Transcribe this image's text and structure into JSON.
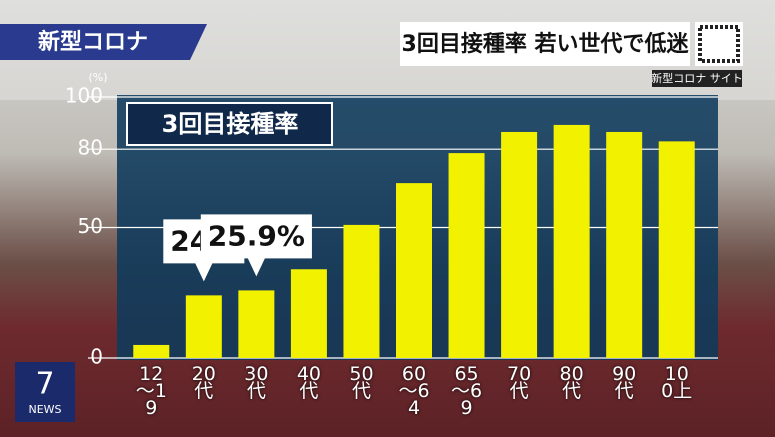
{
  "header": {
    "banner": "新型コロナ",
    "headline": "3回目接種率 若い世代で低迷",
    "site": "新型コロナ サイト"
  },
  "logo": {
    "number": "7",
    "text": "NEWS"
  },
  "chart_data": {
    "type": "bar",
    "title": "3回目接種率",
    "y_unit": "(%)",
    "categories": [
      "12〜19",
      "20代",
      "30代",
      "40代",
      "50代",
      "60〜64",
      "65〜69",
      "70代",
      "80代",
      "90代",
      "100上"
    ],
    "values": [
      5,
      24,
      25.9,
      34,
      51,
      67,
      78.5,
      86.6,
      89.3,
      86.6,
      83
    ],
    "value_labels": [
      null,
      "24%",
      "25.9%",
      null,
      null,
      null,
      null,
      null,
      null,
      null,
      null
    ],
    "color": "#f2f200",
    "ylim": [
      0,
      100
    ],
    "yticks": [
      0,
      50,
      80,
      100
    ],
    "grid": true
  }
}
